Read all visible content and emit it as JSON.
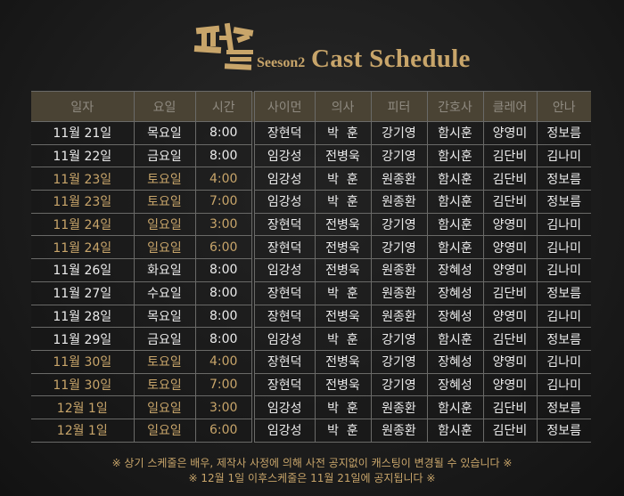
{
  "header": {
    "logo_text": "퍼즐",
    "season": "Seeson2",
    "title": "Cast Schedule"
  },
  "colors": {
    "accent": "#c8a56a",
    "header_bg": "#4a4334"
  },
  "columns": [
    "일자",
    "요일",
    "시간",
    "사이먼",
    "의사",
    "피터",
    "간호사",
    "클레어",
    "안나"
  ],
  "rows": [
    {
      "weekend": false,
      "cells": [
        "11월 21일",
        "목요일",
        "8:00",
        "장현덕",
        "박  훈",
        "강기영",
        "함시훈",
        "양영미",
        "정보름"
      ]
    },
    {
      "weekend": false,
      "cells": [
        "11월 22일",
        "금요일",
        "8:00",
        "임강성",
        "전병욱",
        "강기영",
        "함시훈",
        "김단비",
        "김나미"
      ]
    },
    {
      "weekend": true,
      "cells": [
        "11월 23일",
        "토요일",
        "4:00",
        "임강성",
        "박  훈",
        "원종환",
        "함시훈",
        "김단비",
        "정보름"
      ]
    },
    {
      "weekend": true,
      "cells": [
        "11월 23일",
        "토요일",
        "7:00",
        "임강성",
        "박  훈",
        "원종환",
        "함시훈",
        "김단비",
        "정보름"
      ]
    },
    {
      "weekend": true,
      "cells": [
        "11월 24일",
        "일요일",
        "3:00",
        "장현덕",
        "전병욱",
        "강기영",
        "함시훈",
        "양영미",
        "김나미"
      ]
    },
    {
      "weekend": true,
      "cells": [
        "11월 24일",
        "일요일",
        "6:00",
        "장현덕",
        "전병욱",
        "강기영",
        "함시훈",
        "양영미",
        "김나미"
      ]
    },
    {
      "weekend": false,
      "cells": [
        "11월 26일",
        "화요일",
        "8:00",
        "임강성",
        "전병욱",
        "원종환",
        "장혜성",
        "양영미",
        "김나미"
      ]
    },
    {
      "weekend": false,
      "cells": [
        "11월 27일",
        "수요일",
        "8:00",
        "장현덕",
        "박  훈",
        "원종환",
        "장혜성",
        "김단비",
        "정보름"
      ]
    },
    {
      "weekend": false,
      "cells": [
        "11월 28일",
        "목요일",
        "8:00",
        "장현덕",
        "전병욱",
        "원종환",
        "장혜성",
        "양영미",
        "김나미"
      ]
    },
    {
      "weekend": false,
      "cells": [
        "11월 29일",
        "금요일",
        "8:00",
        "임강성",
        "박  훈",
        "강기영",
        "함시훈",
        "김단비",
        "정보름"
      ]
    },
    {
      "weekend": true,
      "cells": [
        "11월 30일",
        "토요일",
        "4:00",
        "장현덕",
        "전병욱",
        "강기영",
        "장혜성",
        "양영미",
        "김나미"
      ]
    },
    {
      "weekend": true,
      "cells": [
        "11월 30일",
        "토요일",
        "7:00",
        "장현덕",
        "전병욱",
        "강기영",
        "장혜성",
        "양영미",
        "김나미"
      ]
    },
    {
      "weekend": true,
      "cells": [
        "12월 1일",
        "일요일",
        "3:00",
        "임강성",
        "박  훈",
        "원종환",
        "함시훈",
        "김단비",
        "정보름"
      ]
    },
    {
      "weekend": true,
      "cells": [
        "12월 1일",
        "일요일",
        "6:00",
        "임강성",
        "박  훈",
        "원종환",
        "함시훈",
        "김단비",
        "정보름"
      ]
    }
  ],
  "notes": [
    "※ 상기 스케줄은 배우, 제작사 사정에 의해 사전 공지없이 캐스팅이 변경될 수 있습니다 ※",
    "※ 12월 1일 이후스케줄은 11월 21일에 공지됩니다 ※"
  ]
}
